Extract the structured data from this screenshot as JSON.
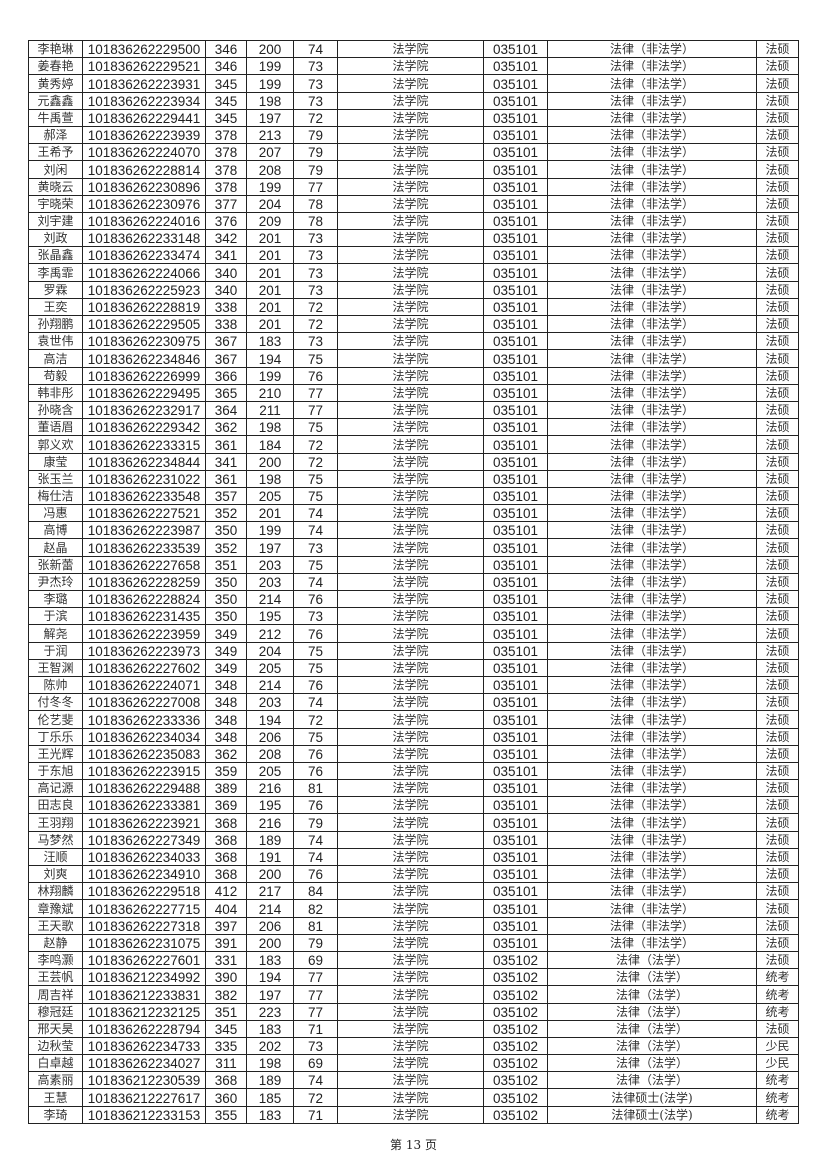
{
  "columns": [
    "name",
    "exam_id",
    "total",
    "score2",
    "score3",
    "college",
    "major_code",
    "major",
    "type"
  ],
  "rows": [
    [
      "李艳琳",
      "101836262229500",
      "346",
      "200",
      "74",
      "法学院",
      "035101",
      "法律（非法学）",
      "法硕"
    ],
    [
      "姜春艳",
      "101836262229521",
      "346",
      "199",
      "73",
      "法学院",
      "035101",
      "法律（非法学）",
      "法硕"
    ],
    [
      "黄秀婷",
      "101836262223931",
      "345",
      "199",
      "73",
      "法学院",
      "035101",
      "法律（非法学）",
      "法硕"
    ],
    [
      "元鑫鑫",
      "101836262223934",
      "345",
      "198",
      "73",
      "法学院",
      "035101",
      "法律（非法学）",
      "法硕"
    ],
    [
      "牛禹萱",
      "101836262229441",
      "345",
      "197",
      "72",
      "法学院",
      "035101",
      "法律（非法学）",
      "法硕"
    ],
    [
      "郝泽",
      "101836262223939",
      "378",
      "213",
      "79",
      "法学院",
      "035101",
      "法律（非法学）",
      "法硕"
    ],
    [
      "王希予",
      "101836262224070",
      "378",
      "207",
      "79",
      "法学院",
      "035101",
      "法律（非法学）",
      "法硕"
    ],
    [
      "刘闲",
      "101836262228814",
      "378",
      "208",
      "79",
      "法学院",
      "035101",
      "法律（非法学）",
      "法硕"
    ],
    [
      "黄晓云",
      "101836262230896",
      "378",
      "199",
      "77",
      "法学院",
      "035101",
      "法律（非法学）",
      "法硕"
    ],
    [
      "宇晓荣",
      "101836262230976",
      "377",
      "204",
      "78",
      "法学院",
      "035101",
      "法律（非法学）",
      "法硕"
    ],
    [
      "刘宇建",
      "101836262224016",
      "376",
      "209",
      "78",
      "法学院",
      "035101",
      "法律（非法学）",
      "法硕"
    ],
    [
      "刘政",
      "101836262233148",
      "342",
      "201",
      "73",
      "法学院",
      "035101",
      "法律（非法学）",
      "法硕"
    ],
    [
      "张晶鑫",
      "101836262233474",
      "341",
      "201",
      "73",
      "法学院",
      "035101",
      "法律（非法学）",
      "法硕"
    ],
    [
      "李禹霏",
      "101836262224066",
      "340",
      "201",
      "73",
      "法学院",
      "035101",
      "法律（非法学）",
      "法硕"
    ],
    [
      "罗霖",
      "101836262225923",
      "340",
      "201",
      "73",
      "法学院",
      "035101",
      "法律（非法学）",
      "法硕"
    ],
    [
      "王奕",
      "101836262228819",
      "338",
      "201",
      "72",
      "法学院",
      "035101",
      "法律（非法学）",
      "法硕"
    ],
    [
      "孙翔鹏",
      "101836262229505",
      "338",
      "201",
      "72",
      "法学院",
      "035101",
      "法律（非法学）",
      "法硕"
    ],
    [
      "袁世伟",
      "101836262230975",
      "367",
      "183",
      "73",
      "法学院",
      "035101",
      "法律（非法学）",
      "法硕"
    ],
    [
      "高洁",
      "101836262234846",
      "367",
      "194",
      "75",
      "法学院",
      "035101",
      "法律（非法学）",
      "法硕"
    ],
    [
      "苟毅",
      "101836262226999",
      "366",
      "199",
      "76",
      "法学院",
      "035101",
      "法律（非法学）",
      "法硕"
    ],
    [
      "韩非彤",
      "101836262229495",
      "365",
      "210",
      "77",
      "法学院",
      "035101",
      "法律（非法学）",
      "法硕"
    ],
    [
      "孙晓含",
      "101836262232917",
      "364",
      "211",
      "77",
      "法学院",
      "035101",
      "法律（非法学）",
      "法硕"
    ],
    [
      "董语眉",
      "101836262229342",
      "362",
      "198",
      "75",
      "法学院",
      "035101",
      "法律（非法学）",
      "法硕"
    ],
    [
      "郭义欢",
      "101836262233315",
      "361",
      "184",
      "72",
      "法学院",
      "035101",
      "法律（非法学）",
      "法硕"
    ],
    [
      "康莹",
      "101836262234844",
      "341",
      "200",
      "72",
      "法学院",
      "035101",
      "法律（非法学）",
      "法硕"
    ],
    [
      "张玉兰",
      "101836262231022",
      "361",
      "198",
      "75",
      "法学院",
      "035101",
      "法律（非法学）",
      "法硕"
    ],
    [
      "梅仕洁",
      "101836262233548",
      "357",
      "205",
      "75",
      "法学院",
      "035101",
      "法律（非法学）",
      "法硕"
    ],
    [
      "冯惠",
      "101836262227521",
      "352",
      "201",
      "74",
      "法学院",
      "035101",
      "法律（非法学）",
      "法硕"
    ],
    [
      "高博",
      "101836262223987",
      "350",
      "199",
      "74",
      "法学院",
      "035101",
      "法律（非法学）",
      "法硕"
    ],
    [
      "赵晶",
      "101836262233539",
      "352",
      "197",
      "73",
      "法学院",
      "035101",
      "法律（非法学）",
      "法硕"
    ],
    [
      "张新蕾",
      "101836262227658",
      "351",
      "203",
      "75",
      "法学院",
      "035101",
      "法律（非法学）",
      "法硕"
    ],
    [
      "尹杰玲",
      "101836262228259",
      "350",
      "203",
      "74",
      "法学院",
      "035101",
      "法律（非法学）",
      "法硕"
    ],
    [
      "李璐",
      "101836262228824",
      "350",
      "214",
      "76",
      "法学院",
      "035101",
      "法律（非法学）",
      "法硕"
    ],
    [
      "于滨",
      "101836262231435",
      "350",
      "195",
      "73",
      "法学院",
      "035101",
      "法律（非法学）",
      "法硕"
    ],
    [
      "解尧",
      "101836262223959",
      "349",
      "212",
      "76",
      "法学院",
      "035101",
      "法律（非法学）",
      "法硕"
    ],
    [
      "于润",
      "101836262223973",
      "349",
      "204",
      "75",
      "法学院",
      "035101",
      "法律（非法学）",
      "法硕"
    ],
    [
      "王智渊",
      "101836262227602",
      "349",
      "205",
      "75",
      "法学院",
      "035101",
      "法律（非法学）",
      "法硕"
    ],
    [
      "陈帅",
      "101836262224071",
      "348",
      "214",
      "76",
      "法学院",
      "035101",
      "法律（非法学）",
      "法硕"
    ],
    [
      "付冬冬",
      "101836262227008",
      "348",
      "203",
      "74",
      "法学院",
      "035101",
      "法律（非法学）",
      "法硕"
    ],
    [
      "伦艺斐",
      "101836262233336",
      "348",
      "194",
      "72",
      "法学院",
      "035101",
      "法律（非法学）",
      "法硕"
    ],
    [
      "丁乐乐",
      "101836262234034",
      "348",
      "206",
      "75",
      "法学院",
      "035101",
      "法律（非法学）",
      "法硕"
    ],
    [
      "王光辉",
      "101836262235083",
      "362",
      "208",
      "76",
      "法学院",
      "035101",
      "法律（非法学）",
      "法硕"
    ],
    [
      "于东旭",
      "101836262223915",
      "359",
      "205",
      "76",
      "法学院",
      "035101",
      "法律（非法学）",
      "法硕"
    ],
    [
      "高记源",
      "101836262229488",
      "389",
      "216",
      "81",
      "法学院",
      "035101",
      "法律（非法学）",
      "法硕"
    ],
    [
      "田志良",
      "101836262233381",
      "369",
      "195",
      "76",
      "法学院",
      "035101",
      "法律（非法学）",
      "法硕"
    ],
    [
      "王羽翔",
      "101836262223921",
      "368",
      "216",
      "79",
      "法学院",
      "035101",
      "法律（非法学）",
      "法硕"
    ],
    [
      "马梦然",
      "101836262227349",
      "368",
      "189",
      "74",
      "法学院",
      "035101",
      "法律（非法学）",
      "法硕"
    ],
    [
      "汪顺",
      "101836262234033",
      "368",
      "191",
      "74",
      "法学院",
      "035101",
      "法律（非法学）",
      "法硕"
    ],
    [
      "刘爽",
      "101836262234910",
      "368",
      "200",
      "76",
      "法学院",
      "035101",
      "法律（非法学）",
      "法硕"
    ],
    [
      "林翔麟",
      "101836262229518",
      "412",
      "217",
      "84",
      "法学院",
      "035101",
      "法律（非法学）",
      "法硕"
    ],
    [
      "章豫斌",
      "101836262227715",
      "404",
      "214",
      "82",
      "法学院",
      "035101",
      "法律（非法学）",
      "法硕"
    ],
    [
      "王天歌",
      "101836262227318",
      "397",
      "206",
      "81",
      "法学院",
      "035101",
      "法律（非法学）",
      "法硕"
    ],
    [
      "赵静",
      "101836262231075",
      "391",
      "200",
      "79",
      "法学院",
      "035101",
      "法律（非法学）",
      "法硕"
    ],
    [
      "李鸣灏",
      "101836262227601",
      "331",
      "183",
      "69",
      "法学院",
      "035102",
      "法律（法学）",
      "法硕"
    ],
    [
      "王芸帆",
      "101836212234992",
      "390",
      "194",
      "77",
      "法学院",
      "035102",
      "法律（法学）",
      "统考"
    ],
    [
      "周吉祥",
      "101836212233831",
      "382",
      "197",
      "77",
      "法学院",
      "035102",
      "法律（法学）",
      "统考"
    ],
    [
      "穆冠廷",
      "101836212232125",
      "351",
      "223",
      "77",
      "法学院",
      "035102",
      "法律（法学）",
      "统考"
    ],
    [
      "邢天昊",
      "101836262228794",
      "345",
      "183",
      "71",
      "法学院",
      "035102",
      "法律（法学）",
      "法硕"
    ],
    [
      "边秋莹",
      "101836262234733",
      "335",
      "202",
      "73",
      "法学院",
      "035102",
      "法律（法学）",
      "少民"
    ],
    [
      "白卓越",
      "101836262234027",
      "311",
      "198",
      "69",
      "法学院",
      "035102",
      "法律（法学）",
      "少民"
    ],
    [
      "高素丽",
      "101836212230539",
      "368",
      "189",
      "74",
      "法学院",
      "035102",
      "法律（法学）",
      "统考"
    ],
    [
      "王慧",
      "101836212227617",
      "360",
      "185",
      "72",
      "法学院",
      "035102",
      "法律硕士(法学)",
      "统考"
    ],
    [
      "李琦",
      "101836212233153",
      "355",
      "183",
      "71",
      "法学院",
      "035102",
      "法律硕士(法学)",
      "统考"
    ]
  ],
  "footer": {
    "page_label": "第 13 页"
  }
}
